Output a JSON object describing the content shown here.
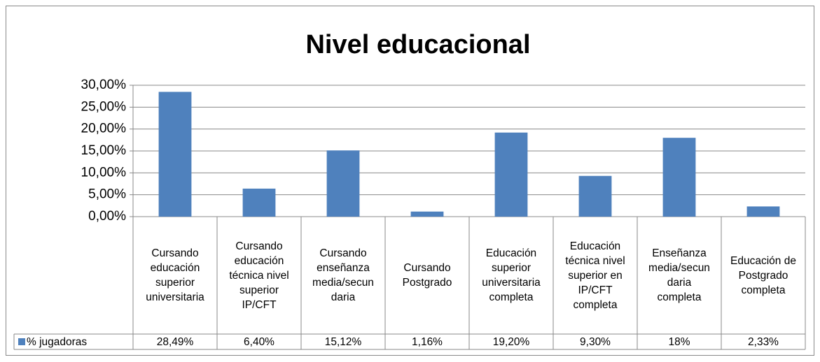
{
  "chart_data": {
    "type": "bar",
    "title": "Nivel educacional",
    "categories": [
      "Cursando educación superior universitaria",
      "Cursando educación técnica nivel superior IP/CFT",
      "Cursando enseñanza media/secundaria",
      "Cursando Postgrado",
      "Educación superior universitaria completa",
      "Educación técnica nivel superior en IP/CFT completa",
      "Enseñanza media/secundaria completa",
      "Educación de Postgrado completa"
    ],
    "series": [
      {
        "name": "% jugadoras",
        "color": "#4f81bd",
        "values": [
          28.49,
          6.4,
          15.12,
          1.16,
          19.2,
          9.3,
          18,
          2.33
        ],
        "value_labels": [
          "28,49%",
          "6,40%",
          "15,12%",
          "1,16%",
          "19,20%",
          "9,30%",
          "18%",
          "2,33%"
        ]
      }
    ],
    "ylim": [
      0,
      30
    ],
    "yticks": [
      {
        "value": 0,
        "label": "0,00%"
      },
      {
        "value": 5,
        "label": "5,00%"
      },
      {
        "value": 10,
        "label": "10,00%"
      },
      {
        "value": 15,
        "label": "15,00%"
      },
      {
        "value": 20,
        "label": "20,00%"
      },
      {
        "value": 25,
        "label": "25,00%"
      },
      {
        "value": 30,
        "label": "30,00%"
      }
    ],
    "grid": true
  }
}
